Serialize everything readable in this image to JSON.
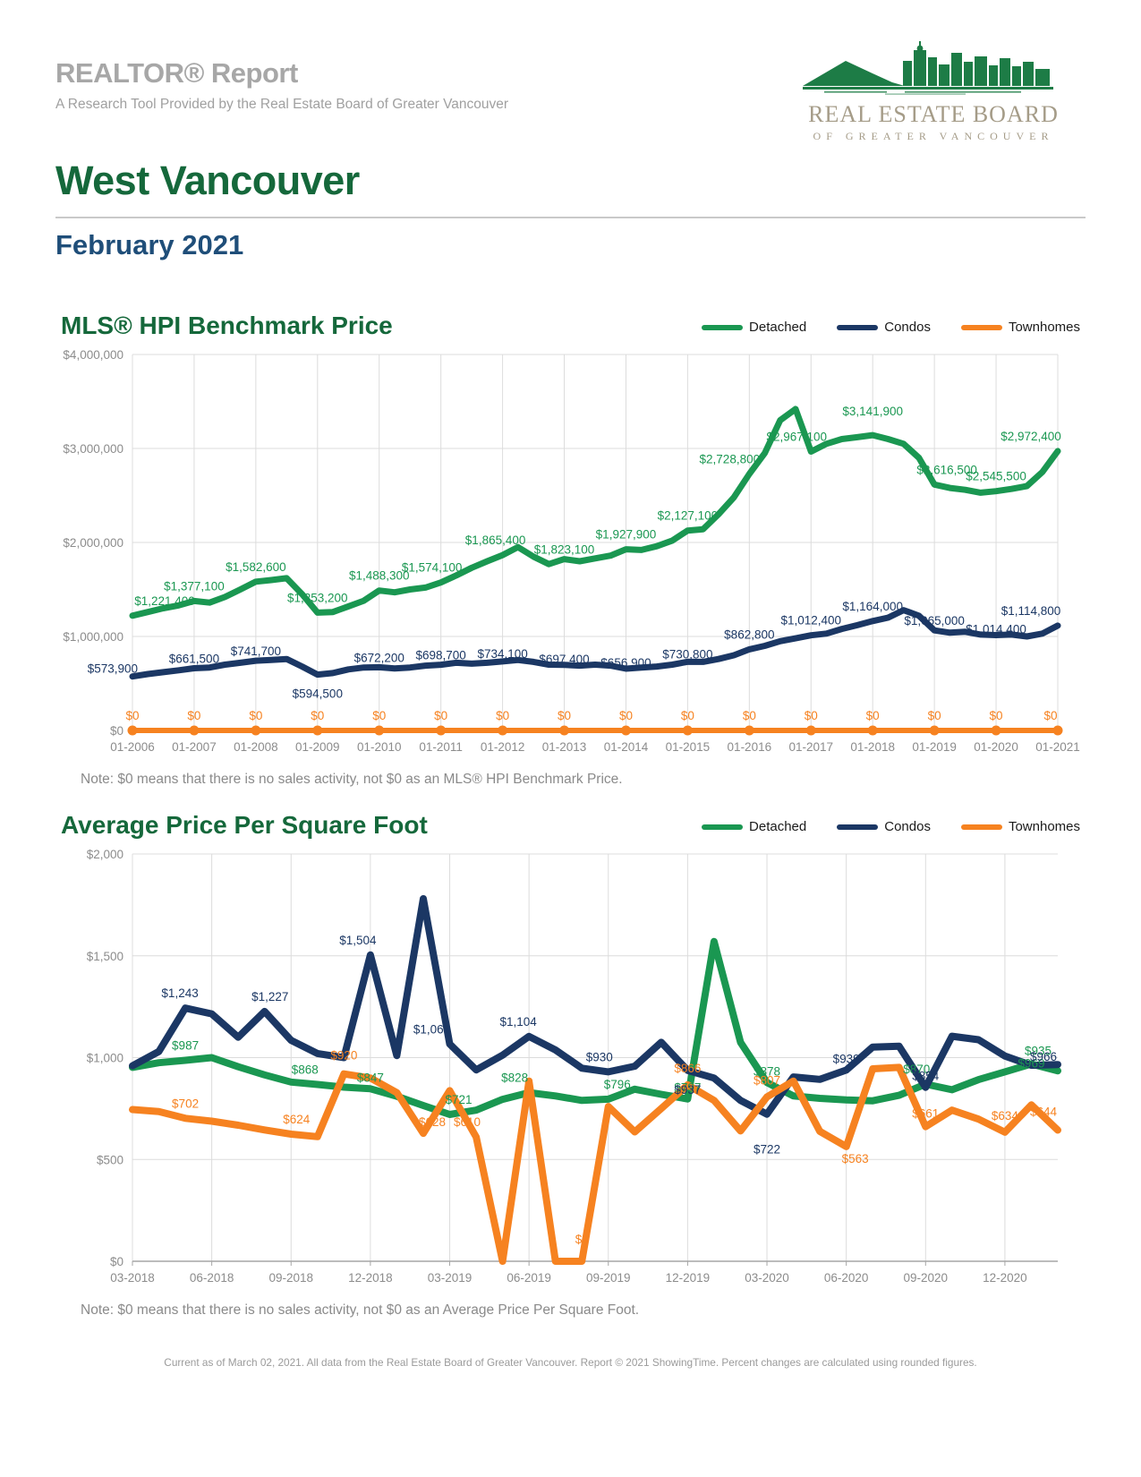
{
  "header": {
    "report_title": "REALTOR® Report",
    "report_subtitle": "A Research Tool Provided by the Real Estate Board of Greater Vancouver",
    "area": "West Vancouver",
    "period": "February 2021",
    "logo_line1": "REAL ESTATE BOARD",
    "logo_line2": "OF GREATER VANCOUVER"
  },
  "legend": {
    "items": [
      {
        "label": "Detached",
        "color": "#1A9751"
      },
      {
        "label": "Condos",
        "color": "#1B3764"
      },
      {
        "label": "Townhomes",
        "color": "#F68220"
      }
    ]
  },
  "chart_data": [
    {
      "type": "line",
      "title": "MLS® HPI Benchmark Price",
      "note": "Note: $0 means that there is no sales activity, not $0 as an MLS® HPI Benchmark Price.",
      "ylabel": "",
      "xlabel": "",
      "y_max": 4000000,
      "y_ticks": [
        "$0",
        "$1,000,000",
        "$2,000,000",
        "$3,000,000",
        "$4,000,000"
      ],
      "x_ticks": [
        "01-2006",
        "01-2007",
        "01-2008",
        "01-2009",
        "01-2010",
        "01-2011",
        "01-2012",
        "01-2013",
        "01-2014",
        "01-2015",
        "01-2016",
        "01-2017",
        "01-2018",
        "01-2019",
        "01-2020",
        "01-2021"
      ],
      "x_tick_every": 4,
      "grid": true,
      "legend_position": "top-right",
      "series": [
        {
          "name": "Detached",
          "color": "#1A9751",
          "width": 7,
          "values": [
            1221400,
            1260000,
            1300000,
            1330000,
            1377100,
            1360000,
            1420000,
            1500000,
            1582600,
            1600000,
            1620000,
            1450000,
            1253200,
            1260000,
            1320000,
            1380000,
            1488300,
            1470000,
            1500000,
            1520000,
            1574100,
            1650000,
            1730000,
            1800000,
            1865400,
            1950000,
            1850000,
            1770000,
            1823100,
            1800000,
            1830000,
            1860000,
            1927900,
            1920000,
            1960000,
            2020000,
            2127100,
            2140000,
            2300000,
            2480000,
            2728800,
            2950000,
            3300000,
            3420000,
            2967100,
            3050000,
            3100000,
            3120000,
            3141900,
            3100000,
            3050000,
            2900000,
            2616500,
            2580000,
            2560000,
            2530000,
            2545500,
            2570000,
            2600000,
            2750000,
            2972400
          ],
          "labels": [
            {
              "i": 0,
              "t": "$1,221,400",
              "dx": 36
            },
            {
              "i": 4,
              "t": "$1,377,100"
            },
            {
              "i": 8,
              "t": "$1,582,600"
            },
            {
              "i": 12,
              "t": "$1,253,200"
            },
            {
              "i": 16,
              "t": "$1,488,300"
            },
            {
              "i": 20,
              "t": "$1,574,100",
              "dx": -10
            },
            {
              "i": 24,
              "t": "$1,865,400",
              "dx": -8
            },
            {
              "i": 28,
              "t": "$1,823,100",
              "dy": 6
            },
            {
              "i": 32,
              "t": "$1,927,900"
            },
            {
              "i": 36,
              "t": "$2,127,100"
            },
            {
              "i": 40,
              "t": "$2,728,800",
              "dx": -22
            },
            {
              "i": 44,
              "t": "$2,967,100",
              "dx": -16
            },
            {
              "i": 48,
              "t": "$3,141,900",
              "dy": -10
            },
            {
              "i": 52,
              "t": "$2,616,500",
              "dx": 14
            },
            {
              "i": 56,
              "t": "$2,545,500"
            },
            {
              "i": 60,
              "t": "$2,972,400",
              "dx": -30
            }
          ]
        },
        {
          "name": "Condos",
          "color": "#1B3764",
          "width": 7,
          "values": [
            573900,
            600000,
            620000,
            640000,
            661500,
            670000,
            700000,
            720000,
            741700,
            750000,
            760000,
            680000,
            594500,
            610000,
            650000,
            670000,
            672200,
            660000,
            670000,
            690000,
            698700,
            720000,
            710000,
            720000,
            734100,
            750000,
            730000,
            700000,
            697400,
            690000,
            700000,
            690000,
            656900,
            670000,
            680000,
            700000,
            730800,
            730000,
            760000,
            800000,
            862800,
            900000,
            950000,
            980000,
            1012400,
            1030000,
            1080000,
            1120000,
            1164000,
            1200000,
            1280000,
            1220000,
            1065000,
            1040000,
            1050000,
            1020000,
            1014400,
            1020000,
            1000000,
            1030000,
            1114800
          ],
          "labels": [
            {
              "i": 0,
              "t": "$573,900",
              "a": "end",
              "dx": 6,
              "dy": 8
            },
            {
              "i": 4,
              "t": "$661,500",
              "dy": 6
            },
            {
              "i": 8,
              "t": "$741,700",
              "dy": 6
            },
            {
              "i": 12,
              "t": "$594,500",
              "pos": "b"
            },
            {
              "i": 16,
              "t": "$672,200",
              "dy": 6
            },
            {
              "i": 20,
              "t": "$698,700",
              "dy": 6
            },
            {
              "i": 24,
              "t": "$734,100",
              "dy": 8
            },
            {
              "i": 28,
              "t": "$697,400",
              "dy": 10
            },
            {
              "i": 32,
              "t": "$656,900",
              "dy": 10
            },
            {
              "i": 36,
              "t": "$730,800",
              "dy": 8
            },
            {
              "i": 40,
              "t": "$862,800"
            },
            {
              "i": 44,
              "t": "$1,012,400"
            },
            {
              "i": 48,
              "t": "$1,164,000"
            },
            {
              "i": 52,
              "t": "$1,065,000",
              "dy": 6
            },
            {
              "i": 56,
              "t": "$1,014,400",
              "dy": 10
            },
            {
              "i": 60,
              "t": "$1,114,800",
              "dx": -30
            }
          ]
        },
        {
          "name": "Townhomes",
          "color": "#F68220",
          "width": 6,
          "markers_every": 4,
          "values": [
            0,
            0,
            0,
            0,
            0,
            0,
            0,
            0,
            0,
            0,
            0,
            0,
            0,
            0,
            0,
            0,
            0,
            0,
            0,
            0,
            0,
            0,
            0,
            0,
            0,
            0,
            0,
            0,
            0,
            0,
            0,
            0,
            0,
            0,
            0,
            0,
            0,
            0,
            0,
            0,
            0,
            0,
            0,
            0,
            0,
            0,
            0,
            0,
            0,
            0,
            0,
            0,
            0,
            0,
            0,
            0,
            0,
            0,
            0,
            0,
            0
          ],
          "labels": [
            {
              "i": 0,
              "t": "$0"
            },
            {
              "i": 4,
              "t": "$0"
            },
            {
              "i": 8,
              "t": "$0"
            },
            {
              "i": 12,
              "t": "$0"
            },
            {
              "i": 16,
              "t": "$0"
            },
            {
              "i": 20,
              "t": "$0"
            },
            {
              "i": 24,
              "t": "$0"
            },
            {
              "i": 28,
              "t": "$0"
            },
            {
              "i": 32,
              "t": "$0"
            },
            {
              "i": 36,
              "t": "$0"
            },
            {
              "i": 40,
              "t": "$0"
            },
            {
              "i": 44,
              "t": "$0"
            },
            {
              "i": 48,
              "t": "$0"
            },
            {
              "i": 52,
              "t": "$0"
            },
            {
              "i": 56,
              "t": "$0"
            },
            {
              "i": 60,
              "t": "$0",
              "dx": -8
            }
          ]
        }
      ]
    },
    {
      "type": "line",
      "title": "Average Price Per Square Foot",
      "note": "Note: $0 means that there is no sales activity, not $0 as an Average Price Per Square Foot.",
      "ylabel": "",
      "xlabel": "",
      "y_max": 2000,
      "y_ticks": [
        "$0",
        "$500",
        "$1,000",
        "$1,500",
        "$2,000"
      ],
      "x_ticks": [
        "03-2018",
        "06-2018",
        "09-2018",
        "12-2018",
        "03-2019",
        "06-2019",
        "09-2019",
        "12-2019",
        "03-2020",
        "06-2020",
        "09-2020",
        "12-2020"
      ],
      "x_tick_every": 3,
      "grid": true,
      "legend_position": "top-right",
      "series": [
        {
          "name": "Detached",
          "color": "#1A9751",
          "width": 8,
          "values": [
            952,
            975,
            987,
            1000,
            955,
            915,
            880,
            868,
            855,
            847,
            810,
            765,
            721,
            742,
            795,
            828,
            812,
            790,
            796,
            845,
            820,
            797,
            1570,
            1075,
            878,
            812,
            800,
            792,
            788,
            815,
            870,
            842,
            892,
            930,
            969,
            935
          ],
          "labels": [
            {
              "i": 2,
              "t": "$987"
            },
            {
              "i": 7,
              "t": "$868",
              "dx": -14
            },
            {
              "i": 9,
              "t": "$847",
              "dy": 4
            },
            {
              "i": 12,
              "t": "$721",
              "dx": 10
            },
            {
              "i": 15,
              "t": "$828",
              "dx": -16
            },
            {
              "i": 18,
              "t": "$796",
              "dx": 10
            },
            {
              "i": 21,
              "t": "$797",
              "dy": 4
            },
            {
              "i": 24,
              "t": "$878",
              "dy": 4
            },
            {
              "i": 30,
              "t": "$870",
              "dx": -10
            },
            {
              "i": 34,
              "t": "$969",
              "dy": 16
            },
            {
              "i": 35,
              "t": "$935",
              "dx": -22,
              "dy": -6
            }
          ]
        },
        {
          "name": "Condos",
          "color": "#1B3764",
          "width": 8,
          "values": [
            960,
            1030,
            1243,
            1215,
            1100,
            1227,
            1085,
            1020,
            1000,
            1504,
            1010,
            1780,
            1067,
            940,
            1012,
            1104,
            1038,
            948,
            930,
            958,
            1075,
            937,
            900,
            790,
            722,
            905,
            893,
            939,
            1052,
            1056,
            854,
            1105,
            1088,
            1008,
            962,
            966
          ],
          "labels": [
            {
              "i": 2,
              "t": "$1,243",
              "dx": -6
            },
            {
              "i": 5,
              "t": "$1,227",
              "dx": 6
            },
            {
              "i": 9,
              "t": "$1,504",
              "dx": -14
            },
            {
              "i": 12,
              "t": "$1,067",
              "dx": -20
            },
            {
              "i": 15,
              "t": "$1,104",
              "dx": -12
            },
            {
              "i": 18,
              "t": "$930",
              "dx": -10
            },
            {
              "i": 21,
              "t": "$937",
              "pos": "b"
            },
            {
              "i": 24,
              "t": "$722",
              "pos": "b",
              "dy": 18
            },
            {
              "i": 27,
              "t": "$939",
              "dy": 4
            },
            {
              "i": 30,
              "t": "$854",
              "dy": 4
            },
            {
              "i": 35,
              "t": "$966",
              "dx": -16,
              "dy": 8
            }
          ]
        },
        {
          "name": "Townhomes",
          "color": "#F68220",
          "width": 8,
          "values": [
            745,
            735,
            702,
            688,
            668,
            645,
            624,
            612,
            920,
            900,
            828,
            628,
            838,
            610,
            0,
            885,
            0,
            0,
            760,
            635,
            750,
            866,
            790,
            640,
            807,
            885,
            638,
            563,
            945,
            952,
            661,
            742,
            698,
            634,
            768,
            644
          ],
          "labels": [
            {
              "i": 2,
              "t": "$702"
            },
            {
              "i": 6,
              "t": "$624",
              "dx": 6
            },
            {
              "i": 8,
              "t": "$920",
              "dy": -4
            },
            {
              "i": 11,
              "t": "$628",
              "dx": 10,
              "dy": 4
            },
            {
              "i": 13,
              "t": "$610",
              "dx": -10
            },
            {
              "i": 17,
              "t": "$0",
              "dy": -8
            },
            {
              "i": 21,
              "t": "$866",
              "dy": -2
            },
            {
              "i": 24,
              "t": "$807",
              "dy": -2
            },
            {
              "i": 27,
              "t": "$563",
              "pos": "b",
              "dx": 10,
              "dy": -8
            },
            {
              "i": 30,
              "t": "$661",
              "dy": 2
            },
            {
              "i": 33,
              "t": "$634",
              "dy": -2
            },
            {
              "i": 35,
              "t": "$644",
              "dx": -16,
              "dy": -4
            }
          ]
        }
      ]
    }
  ],
  "footer": {
    "text": "Current as of March 02, 2021. All data from the Real Estate Board of Greater Vancouver. Report © 2021 ShowingTime. Percent changes are calculated using rounded figures."
  }
}
